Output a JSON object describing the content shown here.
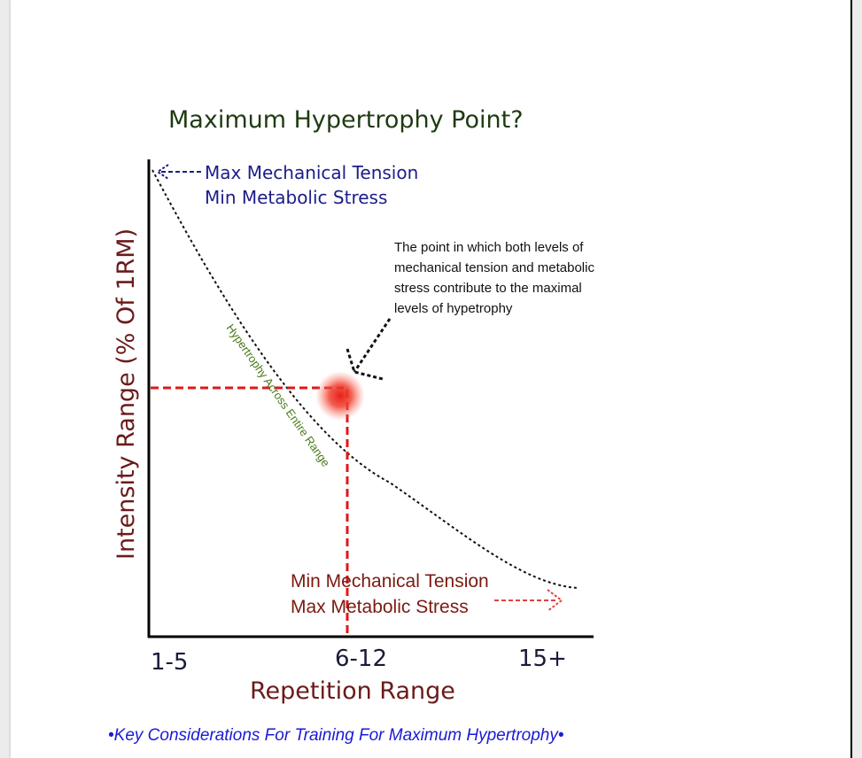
{
  "diagram": {
    "title": "Maximum Hypertrophy Point?",
    "y_axis_label": "Intensity Range (% Of 1RM)",
    "x_axis_label": "Repetition Range",
    "x_ticks": [
      "1-5",
      "6-12",
      "15+"
    ],
    "top_label": {
      "line1": "Max Mechanical Tension",
      "line2": "Min Metabolic Stress"
    },
    "bottom_label": {
      "line1": "Min Mechanical Tension",
      "line2": "Max Metabolic Stress"
    },
    "curve_label": "Hypertrophy Across Entire Range",
    "note": {
      "line1": "The point in which both levels of",
      "line2": "mechanical tension and metabolic",
      "line3": "stress contribute to the maximal",
      "line4": "levels of hypetrophy"
    },
    "colors": {
      "title": "#1f3a12",
      "top_label": "#1c1c8a",
      "bottom_label": "#7a1a10",
      "marker": "#e8201a",
      "curve_label": "#4a7a1a",
      "caption": "#1a1ad6"
    }
  },
  "caption": "•Key Considerations For Training For Maximum Hypertrophy•"
}
